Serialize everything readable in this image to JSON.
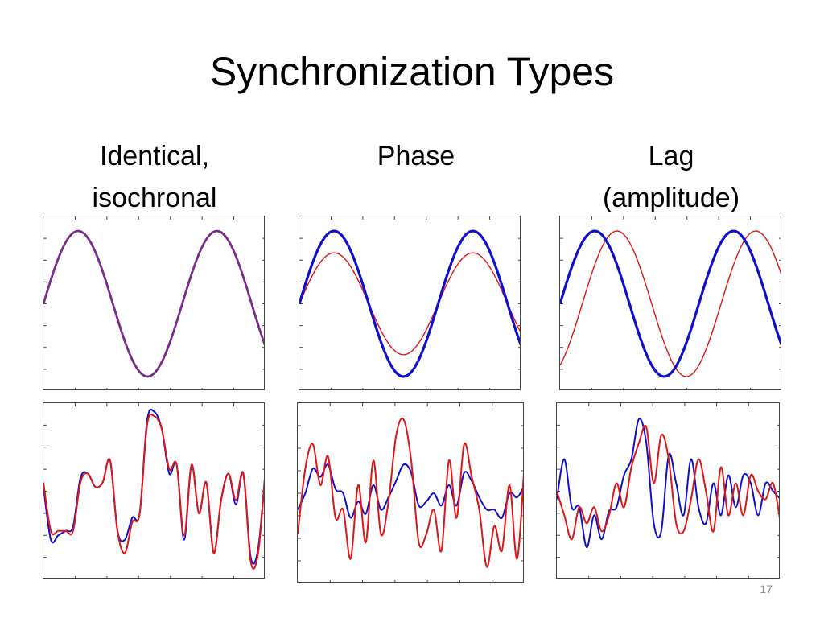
{
  "slide": {
    "title": "Synchronization Types",
    "page_number": "17"
  },
  "columns": [
    {
      "heading_lines": [
        "Identical,",
        "isochronal"
      ]
    },
    {
      "heading_lines": [
        "Phase"
      ]
    },
    {
      "heading_lines": [
        "Lag",
        "(amplitude)"
      ]
    }
  ],
  "colors": {
    "blue": "#1010cc",
    "red": "#e01515",
    "purple": "#7a2a8a"
  },
  "chart_data": [
    {
      "type": "line",
      "panel": "identical-sine",
      "series": [
        {
          "color": "#1010cc",
          "function": "sin",
          "amplitude": 1.0,
          "cycles": 1.6,
          "phase_cycles": 0
        },
        {
          "color": "#e01515",
          "function": "sin",
          "amplitude": 1.0,
          "cycles": 1.6,
          "phase_cycles": 0
        }
      ],
      "ylim": [
        -1.2,
        1.2
      ]
    },
    {
      "type": "line",
      "panel": "phase-sine",
      "series": [
        {
          "color": "#1010cc",
          "function": "sin",
          "amplitude": 1.0,
          "cycles": 1.6,
          "phase_cycles": 0
        },
        {
          "color": "#e01515",
          "function": "sin",
          "amplitude": 0.7,
          "cycles": 1.6,
          "phase_cycles": 0
        }
      ],
      "ylim": [
        -1.2,
        1.2
      ]
    },
    {
      "type": "line",
      "panel": "lag-sine",
      "series": [
        {
          "color": "#1010cc",
          "function": "sin",
          "amplitude": 1.0,
          "cycles": 1.6,
          "phase_cycles": 0
        },
        {
          "color": "#e01515",
          "function": "sin",
          "amplitude": 1.0,
          "cycles": 1.6,
          "phase_cycles": -0.16
        }
      ],
      "ylim": [
        -1.2,
        1.2
      ]
    },
    {
      "type": "line",
      "panel": "identical-chaotic",
      "x": [
        0,
        1,
        2,
        3,
        4,
        5,
        6,
        7,
        8,
        9,
        10,
        11,
        12,
        13,
        14,
        15,
        16,
        17,
        18,
        19,
        20,
        21,
        22,
        23,
        24,
        25,
        26,
        27,
        28,
        29,
        30
      ],
      "series": [
        {
          "color": "#1010cc",
          "values": [
            0.05,
            -0.55,
            -0.5,
            -0.45,
            -0.4,
            0.15,
            0.2,
            0.05,
            0.1,
            0.35,
            -0.45,
            -0.55,
            -0.3,
            -0.25,
            0.8,
            0.9,
            0.7,
            0.2,
            0.3,
            -0.55,
            0.3,
            -0.25,
            0.1,
            -0.7,
            -0.1,
            0.2,
            -0.15,
            0.2,
            -0.75,
            -0.65,
            0.25
          ]
        },
        {
          "color": "#e01515",
          "values": [
            0.1,
            -0.45,
            -0.45,
            -0.45,
            -0.45,
            0.1,
            0.2,
            0.05,
            0.1,
            0.35,
            -0.45,
            -0.7,
            -0.35,
            -0.25,
            0.75,
            0.85,
            0.7,
            0.25,
            0.3,
            -0.5,
            0.3,
            -0.25,
            0.1,
            -0.7,
            -0.1,
            0.2,
            -0.1,
            0.2,
            -0.8,
            -0.7,
            0.25
          ]
        }
      ],
      "ylim": [
        -1.0,
        1.0
      ]
    },
    {
      "type": "line",
      "panel": "phase-chaotic",
      "x": [
        0,
        1,
        2,
        3,
        4,
        5,
        6,
        7,
        8,
        9,
        10,
        11,
        12,
        13,
        14,
        15,
        16,
        17,
        18,
        19,
        20,
        21,
        22,
        23,
        24,
        25,
        26,
        27,
        28,
        29,
        30
      ],
      "series": [
        {
          "color": "#1010cc",
          "values": [
            -0.2,
            0.0,
            0.3,
            0.2,
            0.35,
            0.05,
            0.0,
            -0.3,
            -0.1,
            -0.25,
            0.1,
            -0.2,
            -0.05,
            0.15,
            0.35,
            0.25,
            -0.15,
            -0.1,
            0.0,
            -0.15,
            0.1,
            -0.15,
            0.25,
            0.15,
            -0.05,
            -0.2,
            -0.2,
            -0.3,
            0.0,
            -0.05,
            0.1
          ]
        },
        {
          "color": "#e01515",
          "values": [
            -0.5,
            0.3,
            0.6,
            0.1,
            0.45,
            -0.3,
            -0.2,
            -0.8,
            0.1,
            -0.6,
            0.4,
            -0.5,
            -0.1,
            0.7,
            0.9,
            0.4,
            -0.6,
            -0.5,
            -0.2,
            -0.7,
            0.4,
            -0.3,
            0.6,
            0.2,
            -0.2,
            -0.9,
            -0.4,
            -0.7,
            0.1,
            -0.8,
            0.4
          ]
        }
      ],
      "ylim": [
        -1.1,
        1.1
      ]
    },
    {
      "type": "line",
      "panel": "lag-chaotic",
      "x": [
        0,
        1,
        2,
        3,
        4,
        5,
        6,
        7,
        8,
        9,
        10,
        11,
        12,
        13,
        14,
        15,
        16,
        17,
        18,
        19,
        20,
        21,
        22,
        23,
        24,
        25,
        26,
        27,
        28,
        29,
        30
      ],
      "series": [
        {
          "color": "#1010cc",
          "values": [
            -0.1,
            0.4,
            -0.2,
            -0.2,
            -0.7,
            -0.3,
            -0.6,
            -0.25,
            -0.2,
            0.2,
            0.4,
            0.9,
            0.6,
            -0.4,
            -0.5,
            0.45,
            0.1,
            -0.3,
            0.4,
            -0.2,
            -0.4,
            0.1,
            -0.3,
            0.2,
            -0.2,
            0.2,
            0.1,
            -0.3,
            0.1,
            0.0,
            -0.1
          ]
        },
        {
          "color": "#e01515",
          "values": [
            0.0,
            -0.3,
            -0.6,
            -0.2,
            -0.4,
            -0.2,
            -0.5,
            -0.3,
            0.1,
            -0.2,
            0.3,
            0.6,
            0.8,
            0.1,
            0.7,
            0.4,
            -0.4,
            -0.5,
            -0.1,
            0.4,
            0.0,
            -0.5,
            0.3,
            -0.3,
            0.1,
            -0.3,
            0.2,
            0.0,
            -0.1,
            0.1,
            -0.4
          ]
        }
      ],
      "ylim": [
        -1.1,
        1.1
      ]
    }
  ]
}
